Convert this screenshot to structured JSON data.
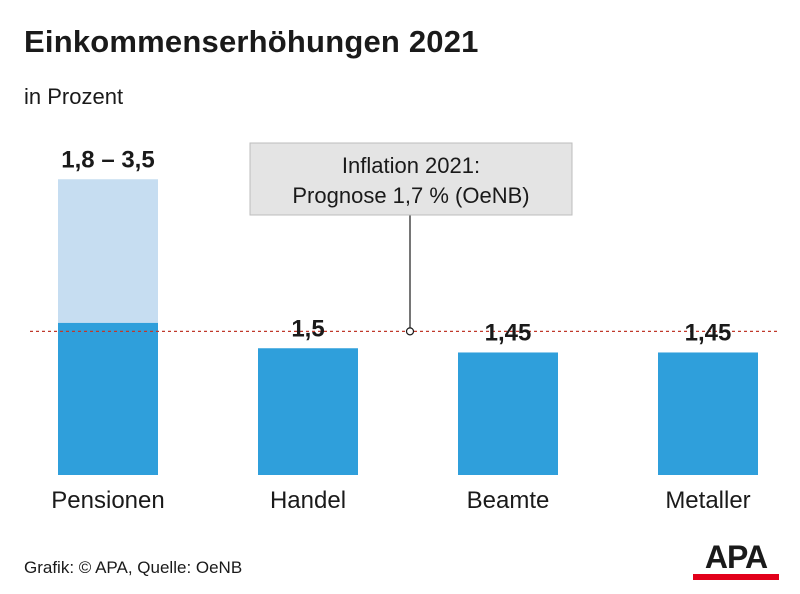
{
  "title": "Einkommenserhöhungen 2021",
  "subtitle": "in Prozent",
  "source": "Grafik: © APA, Quelle: OeNB",
  "logo_text": "APA",
  "colors": {
    "bar": "#2f9fdb",
    "bar_light": "#c6ddf1",
    "reference_line": "#c0392b",
    "annotation_box": "#e4e4e4",
    "logo_accent": "#e2001a"
  },
  "chart_data": {
    "type": "bar",
    "title": "Einkommenserhöhungen 2021",
    "subtitle": "in Prozent",
    "categories": [
      "Pensionen",
      "Handel",
      "Beamte",
      "Metaller"
    ],
    "values": [
      1.8,
      1.5,
      1.45,
      1.45
    ],
    "range_top": [
      3.5,
      null,
      null,
      null
    ],
    "value_labels": [
      "1,8 – 3,5",
      "1,5",
      "1,45",
      "1,45"
    ],
    "reference_line": {
      "value": 1.7,
      "label_lines": [
        "Inflation 2021:",
        "Prognose 1,7 % (OeNB)"
      ]
    },
    "ylim": [
      0,
      3.5
    ],
    "grid": false,
    "legend": "none"
  }
}
